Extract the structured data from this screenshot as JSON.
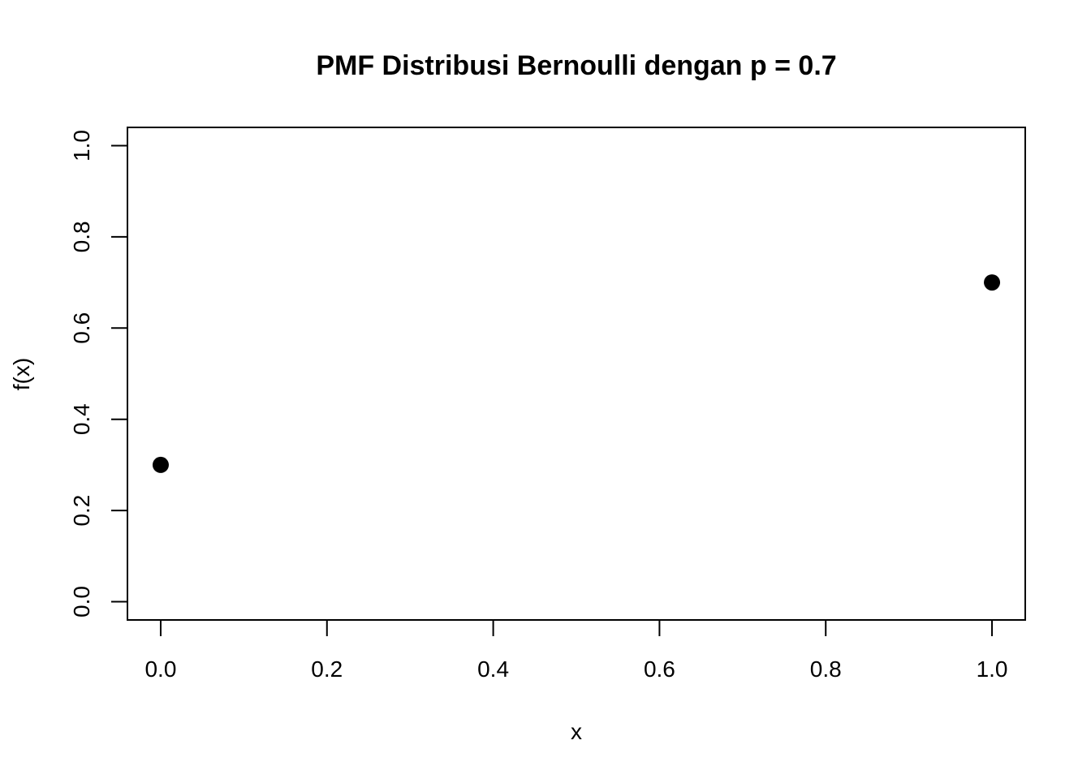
{
  "chart_data": {
    "type": "scatter",
    "title": "PMF Distribusi Bernoulli dengan p = 0.7",
    "xlabel": "x",
    "ylabel": "f(x)",
    "x": [
      0,
      1
    ],
    "y": [
      0.3,
      0.7
    ],
    "xlim": [
      -0.04,
      1.04
    ],
    "ylim": [
      -0.04,
      1.04
    ],
    "xticks": [
      0,
      0.2,
      0.4,
      0.6,
      0.8,
      1
    ],
    "xtick_labels": [
      "0.0",
      "0.2",
      "0.4",
      "0.6",
      "0.8",
      "1.0"
    ],
    "yticks": [
      0,
      0.2,
      0.4,
      0.6,
      0.8,
      1
    ],
    "ytick_labels": [
      "0.0",
      "0.2",
      "0.4",
      "0.6",
      "0.8",
      "1.0"
    ],
    "grid": false,
    "marker": "filled-circle",
    "marker_color": "#000000"
  }
}
